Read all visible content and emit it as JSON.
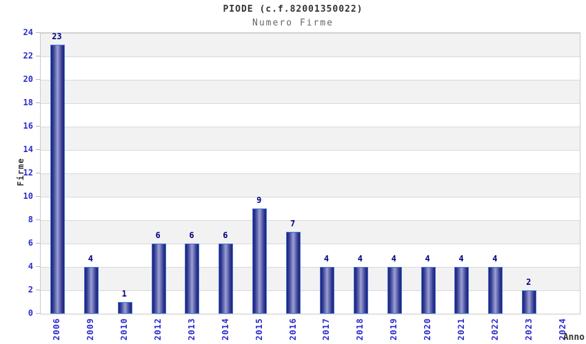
{
  "chart_data": {
    "type": "bar",
    "title": "PIODE (c.f.82001350022)",
    "subtitle": "Numero Firme",
    "xlabel": "Anno",
    "ylabel": "Firme",
    "categories": [
      "2006",
      "2009",
      "2010",
      "2012",
      "2013",
      "2014",
      "2015",
      "2016",
      "2017",
      "2018",
      "2019",
      "2020",
      "2021",
      "2022",
      "2023",
      "2024"
    ],
    "values": [
      23,
      4,
      1,
      6,
      6,
      6,
      9,
      7,
      4,
      4,
      4,
      4,
      4,
      4,
      2,
      0
    ],
    "value_labels_shown": [
      "23",
      "4",
      "1",
      "6",
      "6",
      "6",
      "9",
      "7",
      "4",
      "4",
      "4",
      "4",
      "4",
      "4",
      "2"
    ],
    "ylim": [
      0,
      24
    ],
    "ytick_step": 2,
    "yticks": [
      0,
      2,
      4,
      6,
      8,
      10,
      12,
      14,
      16,
      18,
      20,
      22,
      24
    ],
    "grid": "alternating-horizontal-bands",
    "legend": "none",
    "colors": {
      "bar_edge": "#1e1e74",
      "bar_mid": "#383e96",
      "bar_center": "#9ba1d2",
      "bar_outline": "#4078d8",
      "value_label": "#000080",
      "tick_label": "#2b2bcc",
      "title": "#333333",
      "subtitle": "#666666",
      "band_gray": "#f2f2f2",
      "band_white": "#ffffff",
      "gridline": "#d9d9d9",
      "plot_border": "#c9c9c9"
    }
  }
}
